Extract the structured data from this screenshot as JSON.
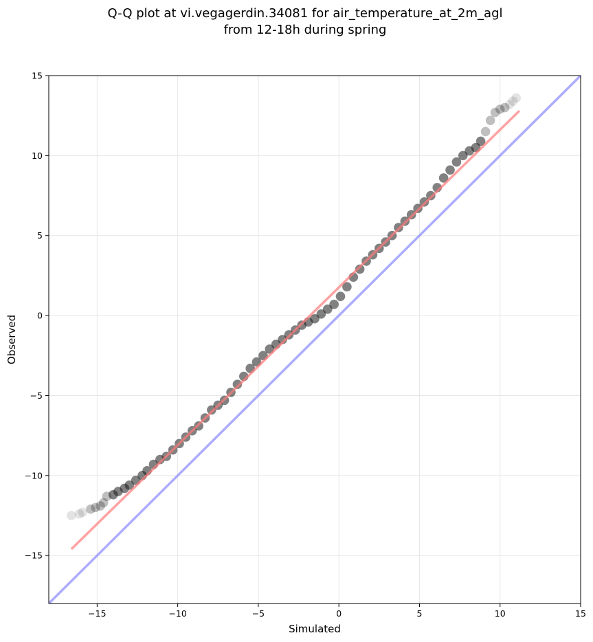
{
  "chart_data": {
    "type": "scatter",
    "title": "Q-Q plot at vi.vegagerdin.34081 for air_temperature_at_2m_agl",
    "subtitle": "from 12-18h during spring",
    "xlabel": "Simulated",
    "ylabel": "Observed",
    "xlim": [
      -18,
      15
    ],
    "ylim": [
      -18,
      15
    ],
    "xticks": [
      -15,
      -10,
      -5,
      0,
      5,
      10,
      15
    ],
    "yticks": [
      -15,
      -10,
      -5,
      0,
      5,
      10,
      15
    ],
    "grid": true,
    "colors": {
      "points": "#1a1a1a",
      "fit_line": "#ff7a7a",
      "identity_line": "#8080ff",
      "grid": "#e6e6e6"
    },
    "series": [
      {
        "kind": "points",
        "x": [
          -16.6,
          -16.1,
          -15.9,
          -15.4,
          -15.1,
          -14.8,
          -14.6,
          -14.4,
          -14.0,
          -13.7,
          -13.3,
          -13.0,
          -12.6,
          -12.2,
          -11.9,
          -11.5,
          -11.1,
          -10.7,
          -10.3,
          -9.9,
          -9.5,
          -9.1,
          -8.7,
          -8.3,
          -7.9,
          -7.5,
          -7.1,
          -6.7,
          -6.3,
          -5.9,
          -5.5,
          -5.1,
          -4.7,
          -4.3,
          -3.9,
          -3.5,
          -3.1,
          -2.7,
          -2.3,
          -1.9,
          -1.5,
          -1.1,
          -0.7,
          -0.3,
          0.1,
          0.5,
          0.9,
          1.3,
          1.7,
          2.1,
          2.5,
          2.9,
          3.3,
          3.7,
          4.1,
          4.5,
          4.9,
          5.3,
          5.7,
          6.1,
          6.5,
          6.9,
          7.3,
          7.7,
          8.1,
          8.5,
          8.8,
          9.1,
          9.4,
          9.7,
          10.0,
          10.3,
          10.6,
          10.8,
          11.0
        ],
        "y": [
          -12.5,
          -12.4,
          -12.3,
          -12.1,
          -12.0,
          -11.9,
          -11.7,
          -11.3,
          -11.2,
          -11.0,
          -10.8,
          -10.6,
          -10.3,
          -10.0,
          -9.7,
          -9.3,
          -9.0,
          -8.8,
          -8.4,
          -8.0,
          -7.6,
          -7.2,
          -6.9,
          -6.4,
          -5.9,
          -5.6,
          -5.3,
          -4.8,
          -4.3,
          -3.8,
          -3.3,
          -2.9,
          -2.5,
          -2.1,
          -1.8,
          -1.5,
          -1.2,
          -0.9,
          -0.6,
          -0.4,
          -0.2,
          0.1,
          0.4,
          0.7,
          1.2,
          1.8,
          2.4,
          2.9,
          3.4,
          3.8,
          4.2,
          4.6,
          5.0,
          5.5,
          5.9,
          6.3,
          6.7,
          7.1,
          7.5,
          8.0,
          8.6,
          9.1,
          9.6,
          10.0,
          10.3,
          10.5,
          10.9,
          11.5,
          12.2,
          12.7,
          12.9,
          13.0,
          13.2,
          13.4,
          13.6
        ]
      },
      {
        "kind": "fit_line",
        "x": [
          -16.6,
          11.2
        ],
        "y": [
          -14.6,
          12.8
        ]
      },
      {
        "kind": "identity_line",
        "x": [
          -18,
          15
        ],
        "y": [
          -18,
          15
        ]
      }
    ]
  }
}
